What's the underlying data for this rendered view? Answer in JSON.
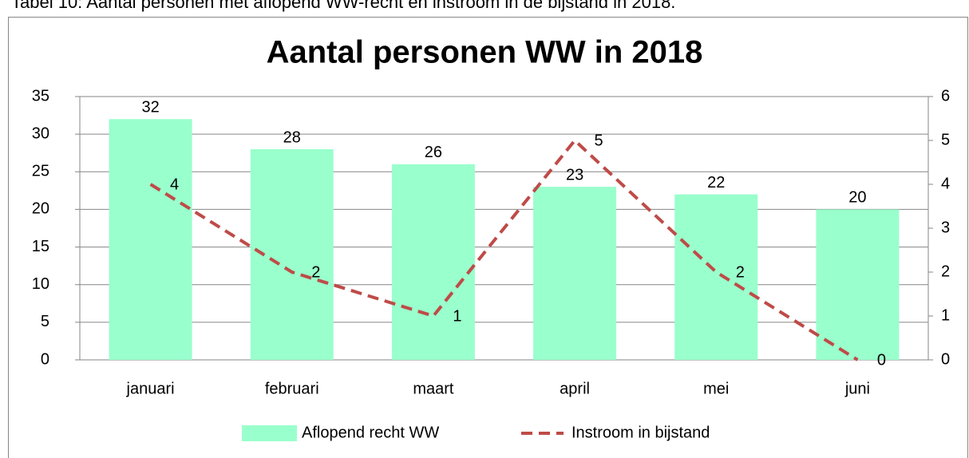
{
  "caption": "Tabel 10: Aantal personen met aflopend WW-recht en instroom in de bijstand in 2018.",
  "chart_data": {
    "type": "bar",
    "title": "Aantal personen WW in 2018",
    "categories": [
      "januari",
      "februari",
      "maart",
      "april",
      "mei",
      "juni"
    ],
    "series": [
      {
        "name": "Aflopend recht WW",
        "color": "#99ffcc",
        "values": [
          32,
          28,
          26,
          23,
          22,
          20
        ]
      },
      {
        "name": "Instroom in bijstand",
        "color": "#be4b48",
        "type": "line",
        "axis": "y2",
        "values": [
          4,
          2,
          1,
          5,
          2,
          0
        ]
      }
    ],
    "ylim": [
      0,
      35
    ],
    "yticks": [
      0,
      5,
      10,
      15,
      20,
      25,
      30,
      35
    ],
    "y2lim": [
      0,
      6
    ],
    "y2ticks": [
      0,
      1,
      2,
      3,
      4,
      5,
      6
    ],
    "grid": true,
    "legend": "bottom"
  }
}
